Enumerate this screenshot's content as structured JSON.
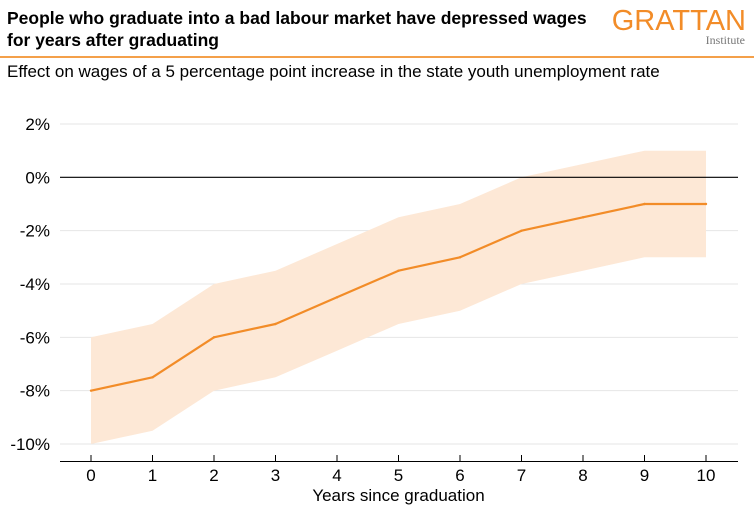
{
  "header": {
    "title": "People who graduate into a bad labour market have depressed wages for years after graduating",
    "subtitle": "Effect on wages of a 5 percentage point increase in the state youth unemployment rate",
    "logo_main": "GRATTAN",
    "logo_sub": "Institute"
  },
  "colors": {
    "line": "#f28c28",
    "band": "#fde8d6",
    "rule": "#f4a04a",
    "zero_line": "#000000",
    "grid": "#e6e6e6"
  },
  "chart_data": {
    "type": "line",
    "title": "People who graduate into a bad labour market have depressed wages for years after graduating",
    "subtitle": "Effect on wages of a 5 percentage point increase in the state youth unemployment rate",
    "xlabel": "Years since graduation",
    "ylabel": "",
    "x": [
      0,
      1,
      2,
      3,
      4,
      5,
      6,
      7,
      8,
      9,
      10
    ],
    "xlim": [
      0,
      10
    ],
    "ylim": [
      -10,
      2
    ],
    "yticks": [
      2,
      0,
      -2,
      -4,
      -6,
      -8,
      -10
    ],
    "ytick_labels": [
      "2%",
      "0%",
      "-2%",
      "-4%",
      "-6%",
      "-8%",
      "-10%"
    ],
    "xtick_labels": [
      "0",
      "1",
      "2",
      "3",
      "4",
      "5",
      "6",
      "7",
      "8",
      "9",
      "10"
    ],
    "grid": true,
    "series": [
      {
        "values": [
          -8,
          -7.5,
          -6,
          -5.5,
          -4.5,
          -3.5,
          -3,
          -2,
          -1.5,
          -1,
          -1
        ]
      }
    ],
    "confidence_band": {
      "upper": [
        -6,
        -5.5,
        -4,
        -3.5,
        -2.5,
        -1.5,
        -1,
        0,
        0.5,
        1,
        1
      ],
      "lower": [
        -10,
        -9.5,
        -8,
        -7.5,
        -6.5,
        -5.5,
        -5,
        -4,
        -3.5,
        -3,
        -3
      ]
    }
  }
}
